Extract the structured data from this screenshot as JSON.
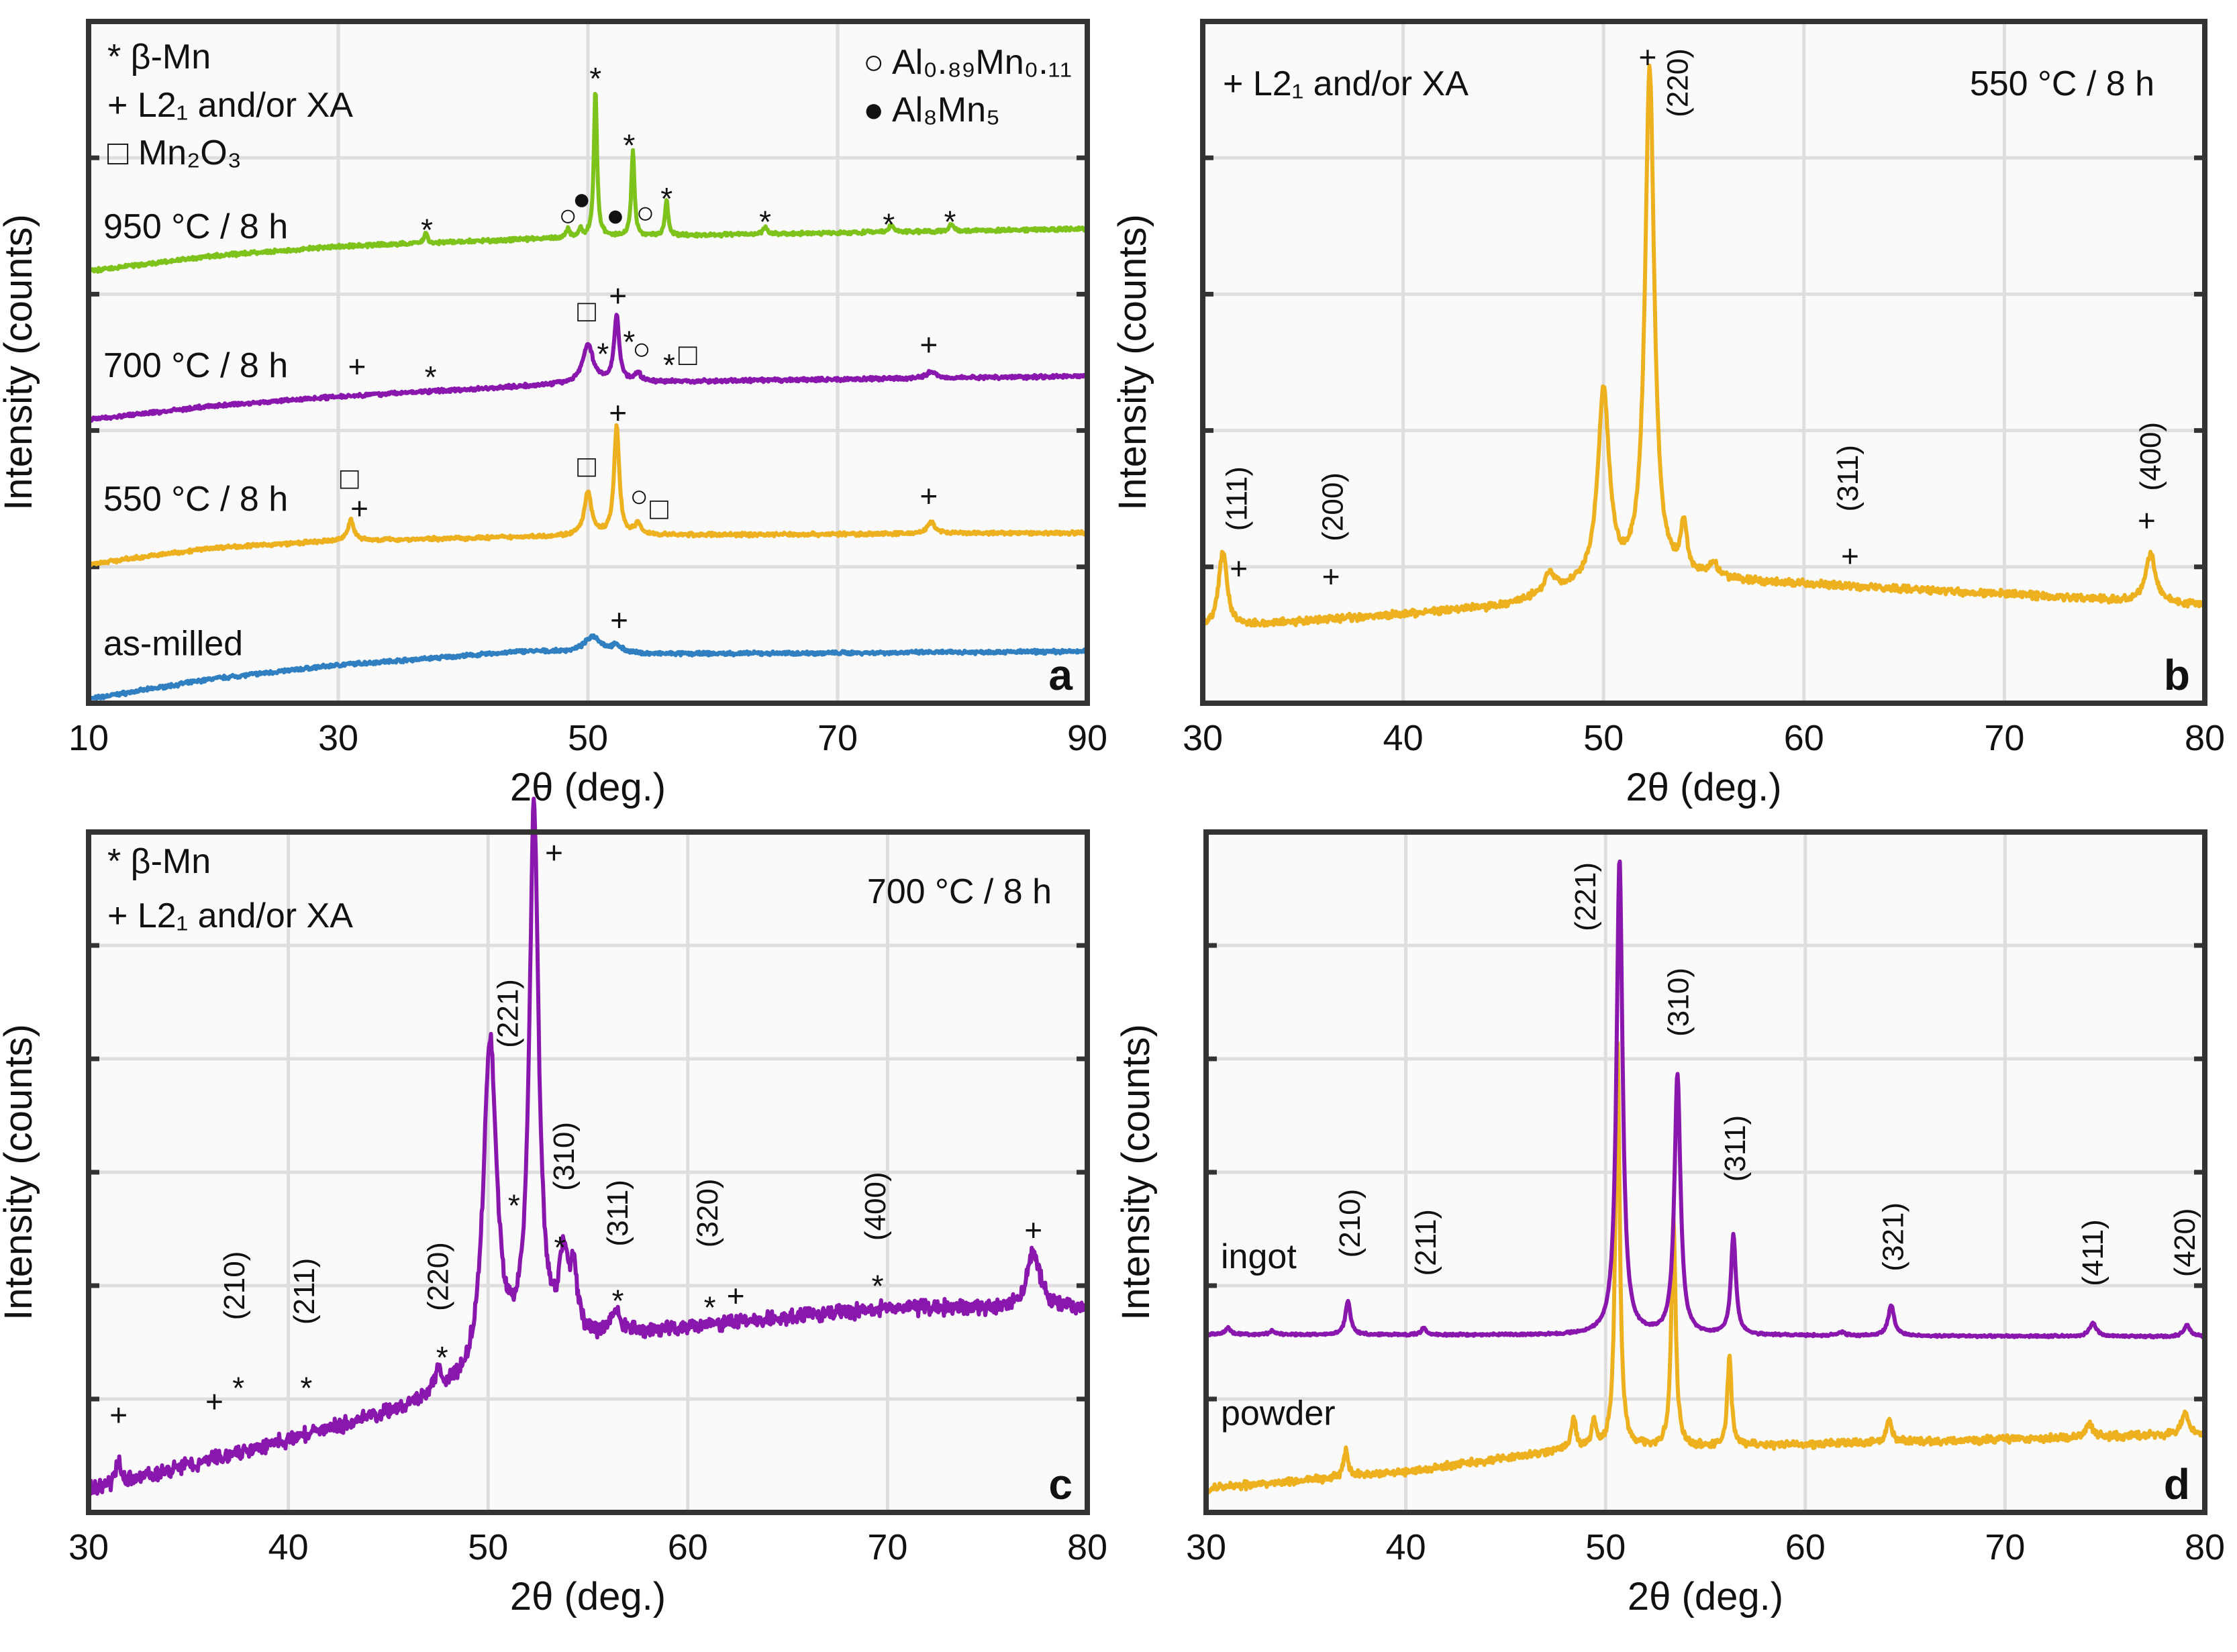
{
  "chart_data": [
    {
      "type": "line",
      "panel": "a",
      "xlabel": "2θ (deg.)",
      "ylabel": "Intensity (counts)",
      "xlim": [
        10,
        90
      ],
      "ylim": [
        0,
        5
      ],
      "xticks": [
        10,
        30,
        50,
        70,
        90
      ],
      "yticks": [
        1,
        2,
        3,
        4
      ],
      "grid": true,
      "legend_left": [
        "* β-Mn",
        "+ L2₁ and/or XA",
        "□ Mn₂O₃"
      ],
      "legend_right": [
        "○ Al₀.₈₉Mn₀.₁₁",
        "● Al₈Mn₅"
      ],
      "corner_label": "a",
      "series": [
        {
          "name": "as-milled",
          "color": "#2f7fc1",
          "label_y": 0.44,
          "noise": 0.02,
          "baseline": [
            [
              10,
              0.03
            ],
            [
              20,
              0.18
            ],
            [
              30,
              0.28
            ],
            [
              45,
              0.38
            ],
            [
              55,
              0.36
            ],
            [
              90,
              0.38
            ]
          ],
          "peaks": [
            [
              50.4,
              0.12,
              0.8
            ],
            [
              52.3,
              0.05,
              0.5
            ]
          ]
        },
        {
          "name": "550 °C / 8 h",
          "color": "#edb120",
          "label_y": 1.5,
          "noise": 0.02,
          "baseline": [
            [
              10,
              1.02
            ],
            [
              20,
              1.14
            ],
            [
              30,
              1.19
            ],
            [
              50,
              1.23
            ],
            [
              90,
              1.25
            ]
          ],
          "peaks": [
            [
              31,
              0.15,
              0.3
            ],
            [
              50,
              0.31,
              0.35
            ],
            [
              52.3,
              0.79,
              0.25
            ],
            [
              54,
              0.08,
              0.3
            ],
            [
              77.5,
              0.08,
              0.4
            ]
          ]
        },
        {
          "name": "700 °C / 8 h",
          "color": "#8a17ad",
          "label_y": 2.48,
          "noise": 0.02,
          "baseline": [
            [
              10,
              2.08
            ],
            [
              20,
              2.18
            ],
            [
              30,
              2.25
            ],
            [
              50,
              2.35
            ],
            [
              90,
              2.4
            ]
          ],
          "peaks": [
            [
              50,
              0.28,
              0.5
            ],
            [
              52.3,
              0.48,
              0.25
            ],
            [
              54,
              0.06,
              0.3
            ],
            [
              77.5,
              0.05,
              0.4
            ]
          ]
        },
        {
          "name": "950 °C / 8 h",
          "color": "#7ec21c",
          "label_y": 3.5,
          "noise": 0.02,
          "baseline": [
            [
              10,
              3.17
            ],
            [
              20,
              3.28
            ],
            [
              30,
              3.35
            ],
            [
              50,
              3.42
            ],
            [
              90,
              3.48
            ]
          ],
          "peaks": [
            [
              37,
              0.08,
              0.15
            ],
            [
              48.4,
              0.06,
              0.15
            ],
            [
              49.4,
              0.05,
              0.15
            ],
            [
              50.6,
              1.08,
              0.15
            ],
            [
              53.6,
              0.62,
              0.15
            ],
            [
              56.3,
              0.26,
              0.15
            ],
            [
              64.2,
              0.05,
              0.2
            ],
            [
              74.3,
              0.05,
              0.2
            ],
            [
              79.1,
              0.05,
              0.2
            ]
          ]
        }
      ],
      "annotations": [
        {
          "s": "*",
          "x": 37.1,
          "y": 3.54
        },
        {
          "s": "*",
          "x": 50.6,
          "y": 4.65
        },
        {
          "s": "*",
          "x": 53.3,
          "y": 4.16
        },
        {
          "s": "*",
          "x": 56.3,
          "y": 3.77
        },
        {
          "s": "*",
          "x": 64.2,
          "y": 3.6
        },
        {
          "s": "*",
          "x": 74.1,
          "y": 3.58
        },
        {
          "s": "*",
          "x": 79,
          "y": 3.6
        },
        {
          "s": "○",
          "x": 48.4,
          "y": 3.58
        },
        {
          "s": "●",
          "x": 49.5,
          "y": 3.7
        },
        {
          "s": "●",
          "x": 52.2,
          "y": 3.58
        },
        {
          "s": "○",
          "x": 54.6,
          "y": 3.6
        },
        {
          "s": "+",
          "x": 31.5,
          "y": 2.47
        },
        {
          "s": "*",
          "x": 37.4,
          "y": 2.46
        },
        {
          "s": "□",
          "x": 49.9,
          "y": 2.88
        },
        {
          "s": "+",
          "x": 52.4,
          "y": 2.99
        },
        {
          "s": "*",
          "x": 51.2,
          "y": 2.63
        },
        {
          "s": "*",
          "x": 53.3,
          "y": 2.72
        },
        {
          "s": "○",
          "x": 54.3,
          "y": 2.6
        },
        {
          "s": "*",
          "x": 56.5,
          "y": 2.55
        },
        {
          "s": "□",
          "x": 58,
          "y": 2.56
        },
        {
          "s": "+",
          "x": 77.3,
          "y": 2.63
        },
        {
          "s": "□",
          "x": 30.9,
          "y": 1.65
        },
        {
          "s": "+",
          "x": 31.7,
          "y": 1.43
        },
        {
          "s": "□",
          "x": 49.9,
          "y": 1.74
        },
        {
          "s": "+",
          "x": 52.4,
          "y": 2.13
        },
        {
          "s": "○",
          "x": 54.1,
          "y": 1.52
        },
        {
          "s": "□",
          "x": 55.7,
          "y": 1.43
        },
        {
          "s": "+",
          "x": 77.3,
          "y": 1.52
        },
        {
          "s": "+",
          "x": 52.5,
          "y": 0.61
        }
      ],
      "hkl": []
    },
    {
      "type": "line",
      "panel": "b",
      "xlabel": "2θ (deg.)",
      "ylabel": "Intensity (counts)",
      "xlim": [
        30,
        80
      ],
      "ylim": [
        0,
        5
      ],
      "xticks": [
        30,
        40,
        50,
        60,
        70,
        80
      ],
      "yticks": [
        1,
        2,
        3,
        4
      ],
      "grid": true,
      "legend_left": [
        "+ L2₁ and/or XA"
      ],
      "legend_right": [],
      "condition": "550 °C / 8 h",
      "corner_label": "b",
      "series": [
        {
          "name": "550 °C / 8 h",
          "color": "#edb120",
          "noise": 0.04,
          "baseline": [
            [
              30,
              0.55
            ],
            [
              40,
              0.65
            ],
            [
              45,
              0.71
            ],
            [
              49,
              0.85
            ],
            [
              55,
              0.9
            ],
            [
              60,
              0.87
            ],
            [
              70,
              0.8
            ],
            [
              80,
              0.72
            ]
          ],
          "peaks": [
            [
              31,
              0.55,
              0.25
            ],
            [
              47.3,
              0.15,
              0.3
            ],
            [
              50,
              1.4,
              0.35
            ],
            [
              52.3,
              3.75,
              0.28
            ],
            [
              54,
              0.35,
              0.2
            ],
            [
              55.5,
              0.1,
              0.3
            ],
            [
              77.3,
              0.35,
              0.3
            ]
          ]
        }
      ],
      "annotations": [
        {
          "s": "+",
          "x": 52.2,
          "y": 4.74
        },
        {
          "s": "+",
          "x": 31.8,
          "y": 0.99
        },
        {
          "s": "+",
          "x": 36.4,
          "y": 0.93
        },
        {
          "s": "+",
          "x": 62.3,
          "y": 1.08
        },
        {
          "s": "+",
          "x": 77.1,
          "y": 1.34
        }
      ],
      "hkl": [
        {
          "label": "(220)",
          "x": 53.8,
          "y": 4.55
        },
        {
          "label": "(111)",
          "x": 31.8,
          "y": 1.5
        },
        {
          "label": "(200)",
          "x": 36.6,
          "y": 1.44
        },
        {
          "label": "(311)",
          "x": 62.3,
          "y": 1.65
        },
        {
          "label": "(400)",
          "x": 77.4,
          "y": 1.81
        }
      ]
    },
    {
      "type": "line",
      "panel": "c",
      "xlabel": "2θ (deg.)",
      "ylabel": "Intensity (counts)",
      "xlim": [
        30,
        80
      ],
      "ylim": [
        0,
        6
      ],
      "xticks": [
        30,
        40,
        50,
        60,
        70,
        80
      ],
      "yticks": [
        1,
        2,
        3,
        4,
        5
      ],
      "grid": true,
      "legend_left": [
        "* β-Mn",
        "+ L2₁ and/or XA"
      ],
      "legend_right": [],
      "condition": "700 °C / 8 h",
      "corner_label": "c",
      "series": [
        {
          "name": "700 °C / 8 h",
          "color": "#8a17ad",
          "noise": 0.1,
          "baseline": [
            [
              30,
              0.19
            ],
            [
              40,
              0.63
            ],
            [
              49,
              1.07
            ],
            [
              50,
              1.2
            ],
            [
              55,
              1.5
            ],
            [
              60,
              1.63
            ],
            [
              70,
              1.8
            ],
            [
              80,
              1.8
            ]
          ],
          "peaks": [
            [
              31.5,
              0.2,
              0.15
            ],
            [
              47.5,
              0.2,
              0.2
            ],
            [
              50.1,
              2.9,
              0.4
            ],
            [
              52.3,
              4.8,
              0.28
            ],
            [
              53.8,
              0.7,
              0.3
            ],
            [
              54.3,
              0.5,
              0.2
            ],
            [
              56.4,
              0.2,
              0.3
            ],
            [
              77.3,
              0.5,
              0.4
            ]
          ]
        }
      ],
      "annotations": [
        {
          "s": "+",
          "x": 31.5,
          "y": 0.86
        },
        {
          "s": "+",
          "x": 36.3,
          "y": 0.98
        },
        {
          "s": "*",
          "x": 37.5,
          "y": 1.18
        },
        {
          "s": "*",
          "x": 40.9,
          "y": 1.18
        },
        {
          "s": "*",
          "x": 47.7,
          "y": 1.45
        },
        {
          "s": "+",
          "x": 53.3,
          "y": 5.82
        },
        {
          "s": "*",
          "x": 51.3,
          "y": 2.79
        },
        {
          "s": "*",
          "x": 53.6,
          "y": 2.42
        },
        {
          "s": "*",
          "x": 56.5,
          "y": 1.95
        },
        {
          "s": "*",
          "x": 61.1,
          "y": 1.89
        },
        {
          "s": "+",
          "x": 62.4,
          "y": 1.91
        },
        {
          "s": "*",
          "x": 69.5,
          "y": 2.08
        },
        {
          "s": "+",
          "x": 77.3,
          "y": 2.49
        }
      ],
      "hkl": [
        {
          "label": "(210)",
          "x": 37.4,
          "y": 2.0
        },
        {
          "label": "(211)",
          "x": 40.9,
          "y": 1.95
        },
        {
          "label": "(220)",
          "x": 47.6,
          "y": 2.08
        },
        {
          "label": "(221)",
          "x": 51.1,
          "y": 4.4
        },
        {
          "label": "(310)",
          "x": 53.9,
          "y": 3.14
        },
        {
          "label": "(311)",
          "x": 56.6,
          "y": 2.64
        },
        {
          "label": "(320)",
          "x": 61.1,
          "y": 2.64
        },
        {
          "label": "(400)",
          "x": 69.5,
          "y": 2.7
        }
      ]
    },
    {
      "type": "line",
      "panel": "d",
      "xlabel": "2θ (deg.)",
      "ylabel": "Intensity (counts)",
      "xlim": [
        30,
        80
      ],
      "ylim": [
        0,
        6
      ],
      "xticks": [
        30,
        40,
        50,
        60,
        70,
        80
      ],
      "yticks": [
        1,
        2,
        3,
        4,
        5
      ],
      "grid": true,
      "legend_left": [],
      "legend_right": [],
      "corner_label": "d",
      "series": [
        {
          "name": "powder",
          "color": "#edb120",
          "label_y": 0.88,
          "noise": 0.05,
          "baseline": [
            [
              30,
              0.21
            ],
            [
              40,
              0.36
            ],
            [
              48,
              0.55
            ],
            [
              60,
              0.6
            ],
            [
              80,
              0.69
            ]
          ],
          "peaks": [
            [
              37,
              0.25,
              0.12
            ],
            [
              48.4,
              0.3,
              0.12
            ],
            [
              49.4,
              0.25,
              0.12
            ],
            [
              50.6,
              3.55,
              0.13
            ],
            [
              53.4,
              2.0,
              0.13
            ],
            [
              56.2,
              0.8,
              0.12
            ],
            [
              64.2,
              0.2,
              0.15
            ],
            [
              74.2,
              0.12,
              0.2
            ],
            [
              79,
              0.2,
              0.2
            ]
          ]
        },
        {
          "name": "ingot",
          "color": "#8a17ad",
          "label_y": 2.26,
          "noise": 0.015,
          "baseline": [
            [
              30,
              1.57
            ],
            [
              80,
              1.55
            ]
          ],
          "peaks": [
            [
              31.1,
              0.06,
              0.15
            ],
            [
              33.3,
              0.03,
              0.15
            ],
            [
              37.1,
              0.3,
              0.15
            ],
            [
              40.9,
              0.06,
              0.15
            ],
            [
              50.7,
              4.2,
              0.18
            ],
            [
              53.6,
              2.3,
              0.18
            ],
            [
              56.4,
              0.88,
              0.15
            ],
            [
              61.8,
              0.03,
              0.2
            ],
            [
              64.3,
              0.27,
              0.18
            ],
            [
              74.4,
              0.12,
              0.2
            ],
            [
              79.1,
              0.1,
              0.2
            ]
          ]
        }
      ],
      "annotations": [],
      "hkl": [
        {
          "label": "(210)",
          "x": 37.3,
          "y": 2.55
        },
        {
          "label": "(211)",
          "x": 41.1,
          "y": 2.38
        },
        {
          "label": "(221)",
          "x": 49.1,
          "y": 5.43
        },
        {
          "label": "(310)",
          "x": 53.75,
          "y": 4.5
        },
        {
          "label": "(311)",
          "x": 56.6,
          "y": 3.21
        },
        {
          "label": "(321)",
          "x": 64.5,
          "y": 2.43
        },
        {
          "label": "(411)",
          "x": 74.5,
          "y": 2.29
        },
        {
          "label": "(420)",
          "x": 79.1,
          "y": 2.38
        }
      ]
    }
  ]
}
